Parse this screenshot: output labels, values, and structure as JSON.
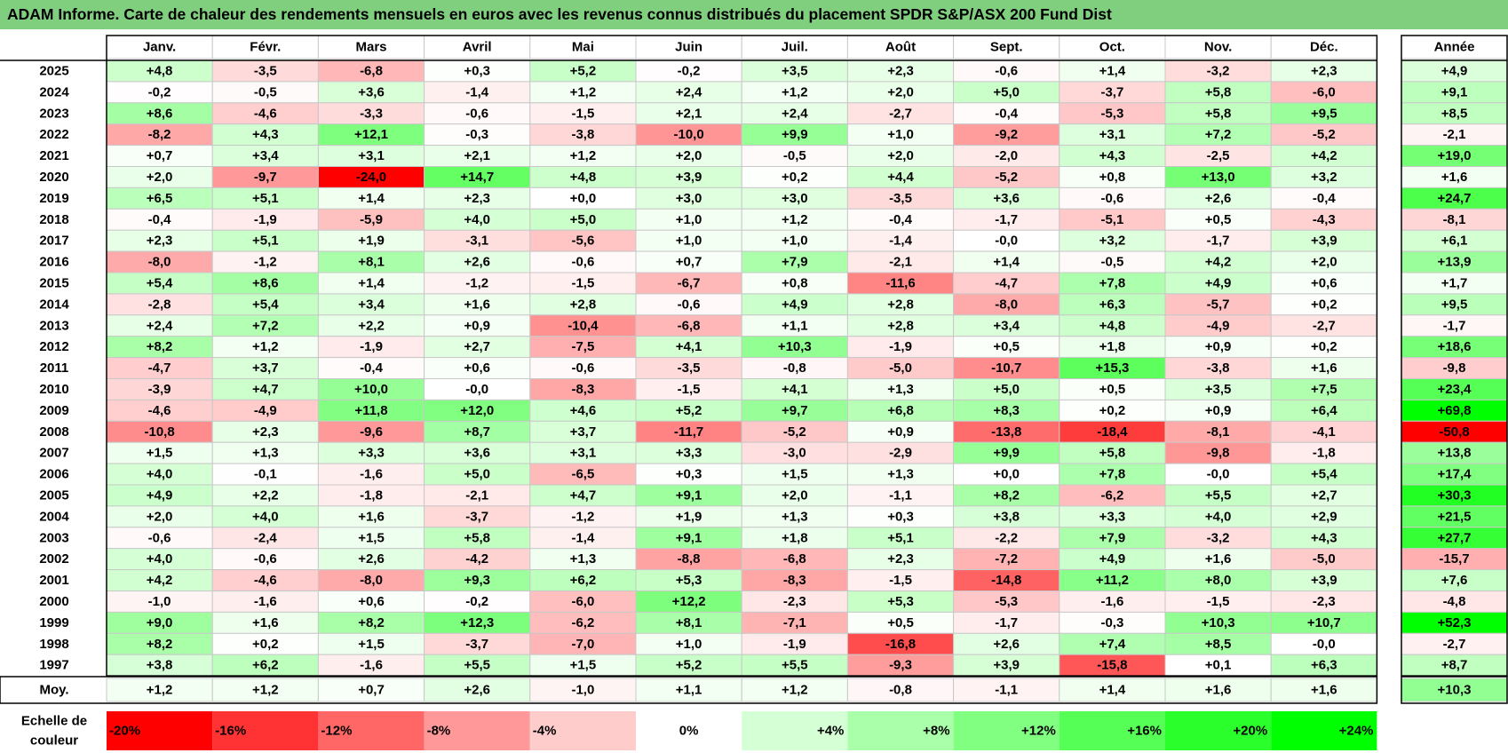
{
  "title": "ADAM Informe. Carte de chaleur des rendements mensuels en euros avec les revenus connus distribués du placement SPDR S&P/ASX 200 Fund Dist",
  "chart_data": {
    "type": "heatmap",
    "columns": [
      "Janv.",
      "Févr.",
      "Mars",
      "Avril",
      "Mai",
      "Juin",
      "Juil.",
      "Août",
      "Sept.",
      "Oct.",
      "Nov.",
      "Déc."
    ],
    "annual_header": "Année",
    "rows": [
      {
        "year": "2025",
        "values": [
          "+4,8",
          "-3,5",
          "-6,8",
          "+0,3",
          "+5,2",
          "-0,2",
          "+3,5",
          "+2,3",
          "-0,6",
          "+1,4",
          "-3,2",
          "+2,3"
        ],
        "annual": "+4,9"
      },
      {
        "year": "2024",
        "values": [
          "-0,2",
          "-0,5",
          "+3,6",
          "-1,4",
          "+1,2",
          "+2,4",
          "+1,2",
          "+2,0",
          "+5,0",
          "-3,7",
          "+5,8",
          "-6,0"
        ],
        "annual": "+9,1"
      },
      {
        "year": "2023",
        "values": [
          "+8,6",
          "-4,6",
          "-3,3",
          "-0,6",
          "-1,5",
          "+2,1",
          "+2,4",
          "-2,7",
          "-0,4",
          "-5,3",
          "+5,8",
          "+9,5"
        ],
        "annual": "+8,5"
      },
      {
        "year": "2022",
        "values": [
          "-8,2",
          "+4,3",
          "+12,1",
          "-0,3",
          "-3,8",
          "-10,0",
          "+9,9",
          "+1,0",
          "-9,2",
          "+3,1",
          "+7,2",
          "-5,2"
        ],
        "annual": "-2,1"
      },
      {
        "year": "2021",
        "values": [
          "+0,7",
          "+3,4",
          "+3,1",
          "+2,1",
          "+1,2",
          "+2,0",
          "-0,5",
          "+2,0",
          "-2,0",
          "+4,3",
          "-2,5",
          "+4,2"
        ],
        "annual": "+19,0"
      },
      {
        "year": "2020",
        "values": [
          "+2,0",
          "-9,7",
          "-24,0",
          "+14,7",
          "+4,8",
          "+3,9",
          "+0,2",
          "+4,4",
          "-5,2",
          "+0,8",
          "+13,0",
          "+3,2"
        ],
        "annual": "+1,6"
      },
      {
        "year": "2019",
        "values": [
          "+6,5",
          "+5,1",
          "+1,4",
          "+2,3",
          "+0,0",
          "+3,0",
          "+3,0",
          "-3,5",
          "+3,6",
          "-0,6",
          "+2,6",
          "-0,4"
        ],
        "annual": "+24,7"
      },
      {
        "year": "2018",
        "values": [
          "-0,4",
          "-1,9",
          "-5,9",
          "+4,0",
          "+5,0",
          "+1,0",
          "+1,2",
          "-0,4",
          "-1,7",
          "-5,1",
          "+0,5",
          "-4,3"
        ],
        "annual": "-8,1"
      },
      {
        "year": "2017",
        "values": [
          "+2,3",
          "+5,1",
          "+1,9",
          "-3,1",
          "-5,6",
          "+1,0",
          "+1,0",
          "-1,4",
          "-0,0",
          "+3,2",
          "-1,7",
          "+3,9"
        ],
        "annual": "+6,1"
      },
      {
        "year": "2016",
        "values": [
          "-8,0",
          "-1,2",
          "+8,1",
          "+2,6",
          "-0,6",
          "+0,7",
          "+7,9",
          "-2,1",
          "+1,4",
          "-0,5",
          "+4,2",
          "+2,0"
        ],
        "annual": "+13,9"
      },
      {
        "year": "2015",
        "values": [
          "+5,4",
          "+8,6",
          "+1,4",
          "-1,2",
          "-1,5",
          "-6,7",
          "+0,8",
          "-11,6",
          "-4,7",
          "+7,8",
          "+4,9",
          "+0,6"
        ],
        "annual": "+1,7"
      },
      {
        "year": "2014",
        "values": [
          "-2,8",
          "+5,4",
          "+3,4",
          "+1,6",
          "+2,8",
          "-0,6",
          "+4,9",
          "+2,8",
          "-8,0",
          "+6,3",
          "-5,7",
          "+0,2"
        ],
        "annual": "+9,5"
      },
      {
        "year": "2013",
        "values": [
          "+2,4",
          "+7,2",
          "+2,2",
          "+0,9",
          "-10,4",
          "-6,8",
          "+1,1",
          "+2,8",
          "+3,4",
          "+4,8",
          "-4,9",
          "-2,7"
        ],
        "annual": "-1,7"
      },
      {
        "year": "2012",
        "values": [
          "+8,2",
          "+1,2",
          "-1,9",
          "+2,7",
          "-7,5",
          "+4,1",
          "+10,3",
          "-1,9",
          "+0,5",
          "+1,8",
          "+0,9",
          "+0,2"
        ],
        "annual": "+18,6"
      },
      {
        "year": "2011",
        "values": [
          "-4,7",
          "+3,7",
          "-0,4",
          "+0,6",
          "-0,6",
          "-3,5",
          "-0,8",
          "-5,0",
          "-10,7",
          "+15,3",
          "-3,8",
          "+1,6"
        ],
        "annual": "-9,8"
      },
      {
        "year": "2010",
        "values": [
          "-3,9",
          "+4,7",
          "+10,0",
          "-0,0",
          "-8,3",
          "-1,5",
          "+4,1",
          "+1,3",
          "+5,0",
          "+0,5",
          "+3,5",
          "+7,5"
        ],
        "annual": "+23,4"
      },
      {
        "year": "2009",
        "values": [
          "-4,6",
          "-4,9",
          "+11,8",
          "+12,0",
          "+4,6",
          "+5,2",
          "+9,7",
          "+6,8",
          "+8,3",
          "+0,2",
          "+0,9",
          "+6,4"
        ],
        "annual": "+69,8"
      },
      {
        "year": "2008",
        "values": [
          "-10,8",
          "+2,3",
          "-9,6",
          "+8,7",
          "+3,7",
          "-11,7",
          "-5,2",
          "+0,9",
          "-13,8",
          "-18,4",
          "-8,1",
          "-4,1"
        ],
        "annual": "-50,8"
      },
      {
        "year": "2007",
        "values": [
          "+1,5",
          "+1,3",
          "+3,3",
          "+3,6",
          "+3,1",
          "+3,3",
          "-3,0",
          "-2,9",
          "+9,9",
          "+5,8",
          "-9,8",
          "-1,8"
        ],
        "annual": "+13,8"
      },
      {
        "year": "2006",
        "values": [
          "+4,0",
          "-0,1",
          "-1,6",
          "+5,0",
          "-6,5",
          "+0,3",
          "+1,5",
          "+1,3",
          "+0,0",
          "+7,8",
          "-0,0",
          "+5,4"
        ],
        "annual": "+17,4"
      },
      {
        "year": "2005",
        "values": [
          "+4,9",
          "+2,2",
          "-1,8",
          "-2,1",
          "+4,7",
          "+9,1",
          "+2,0",
          "-1,1",
          "+8,2",
          "-6,2",
          "+5,5",
          "+2,7"
        ],
        "annual": "+30,3"
      },
      {
        "year": "2004",
        "values": [
          "+2,0",
          "+4,0",
          "+1,6",
          "-3,7",
          "-1,2",
          "+1,9",
          "+1,3",
          "+0,3",
          "+3,8",
          "+3,3",
          "+4,0",
          "+2,9"
        ],
        "annual": "+21,5"
      },
      {
        "year": "2003",
        "values": [
          "-0,6",
          "-2,4",
          "+1,5",
          "+5,8",
          "-1,4",
          "+9,1",
          "+1,8",
          "+5,1",
          "-2,2",
          "+7,9",
          "-3,2",
          "+4,3"
        ],
        "annual": "+27,7"
      },
      {
        "year": "2002",
        "values": [
          "+4,0",
          "-0,6",
          "+2,6",
          "-4,2",
          "+1,3",
          "-8,8",
          "-6,8",
          "+2,3",
          "-7,2",
          "+4,9",
          "+1,6",
          "-5,0"
        ],
        "annual": "-15,7"
      },
      {
        "year": "2001",
        "values": [
          "+4,2",
          "-4,6",
          "-8,0",
          "+9,3",
          "+6,2",
          "+5,3",
          "-8,3",
          "-1,5",
          "-14,8",
          "+11,2",
          "+8,0",
          "+3,9"
        ],
        "annual": "+7,6"
      },
      {
        "year": "2000",
        "values": [
          "-1,0",
          "-1,6",
          "+0,6",
          "-0,2",
          "-6,0",
          "+12,2",
          "-2,3",
          "+5,3",
          "-5,3",
          "-1,6",
          "-1,5",
          "-2,3"
        ],
        "annual": "-4,8"
      },
      {
        "year": "1999",
        "values": [
          "+9,0",
          "+1,6",
          "+8,2",
          "+12,3",
          "-6,2",
          "+8,1",
          "-7,1",
          "+0,5",
          "-1,7",
          "-0,3",
          "+10,3",
          "+10,7"
        ],
        "annual": "+52,3"
      },
      {
        "year": "1998",
        "values": [
          "+8,2",
          "+0,2",
          "+1,5",
          "-3,7",
          "-7,0",
          "+1,0",
          "-1,9",
          "-16,8",
          "+2,6",
          "+7,4",
          "+8,5",
          "-0,0"
        ],
        "annual": "-2,7"
      },
      {
        "year": "1997",
        "values": [
          "+3,8",
          "+6,2",
          "-1,6",
          "+5,5",
          "+1,5",
          "+5,2",
          "+5,5",
          "-9,3",
          "+3,9",
          "-15,8",
          "+0,1",
          "+6,3"
        ],
        "annual": "+8,7"
      }
    ],
    "average": {
      "label": "Moy.",
      "values": [
        "+1,2",
        "+1,2",
        "+0,7",
        "+2,6",
        "-1,0",
        "+1,1",
        "+1,2",
        "-0,8",
        "-1,1",
        "+1,4",
        "+1,6",
        "+1,6"
      ],
      "annual": "+10,3"
    },
    "scale": {
      "label": [
        "Echelle de",
        "couleur"
      ],
      "stops": [
        "-20%",
        "-16%",
        "-12%",
        "-8%",
        "-4%",
        "0%",
        "+4%",
        "+8%",
        "+12%",
        "+16%",
        "+20%",
        "+24%"
      ],
      "neg_color": "#ff0000",
      "pos_color": "#00ff00",
      "zero_color": "#ffffff"
    }
  }
}
